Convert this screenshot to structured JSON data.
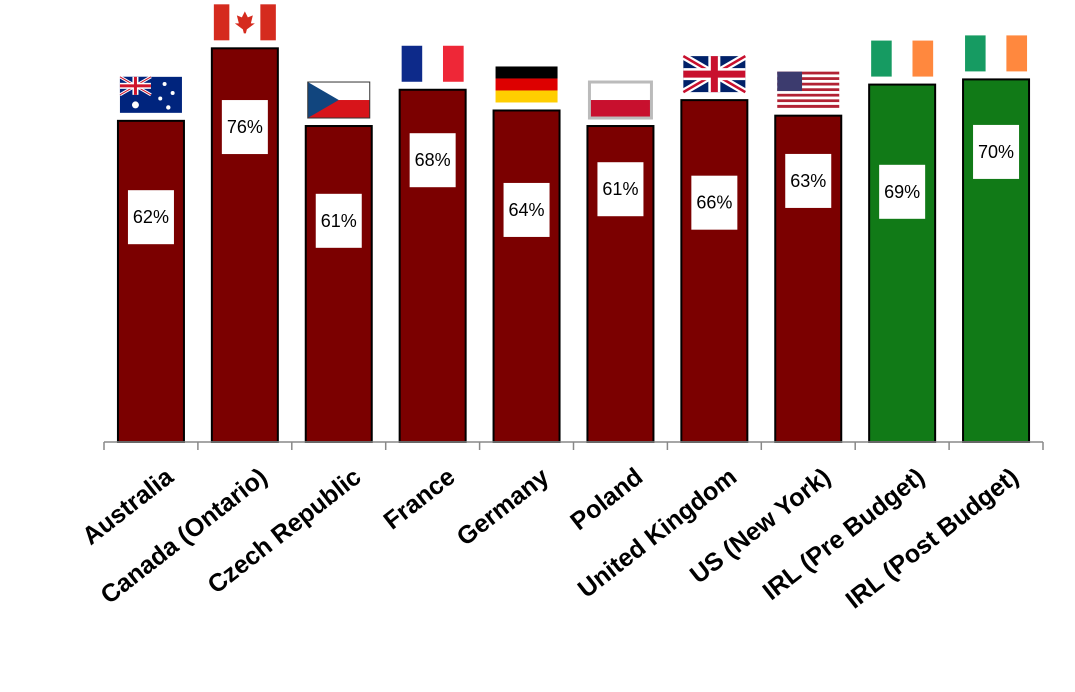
{
  "chart_data": {
    "type": "bar",
    "title": "",
    "xlabel": "",
    "ylabel": "",
    "ylim": [
      0,
      80
    ],
    "grid": false,
    "legend": "none",
    "categories": [
      "Australia",
      "Canada (Ontario)",
      "Czech Republic",
      "France",
      "Germany",
      "Poland",
      "United Kingdom",
      "US (New York)",
      "IRL (Pre Budget)",
      "IRL (Post Budget)"
    ],
    "values": [
      62,
      76,
      61,
      68,
      64,
      61,
      66,
      63,
      69,
      70
    ],
    "data_labels": [
      "62%",
      "76%",
      "61%",
      "68%",
      "64%",
      "61%",
      "66%",
      "63%",
      "69%",
      "70%"
    ],
    "bar_colors": [
      "#7b0000",
      "#7b0000",
      "#7b0000",
      "#7b0000",
      "#7b0000",
      "#7b0000",
      "#7b0000",
      "#7b0000",
      "#117a17",
      "#117a17"
    ],
    "flags": [
      "australia-flag",
      "canada-flag",
      "czech-flag",
      "france-flag",
      "germany-flag",
      "poland-flag",
      "uk-flag",
      "usa-flag",
      "ireland-flag",
      "ireland-flag"
    ]
  }
}
